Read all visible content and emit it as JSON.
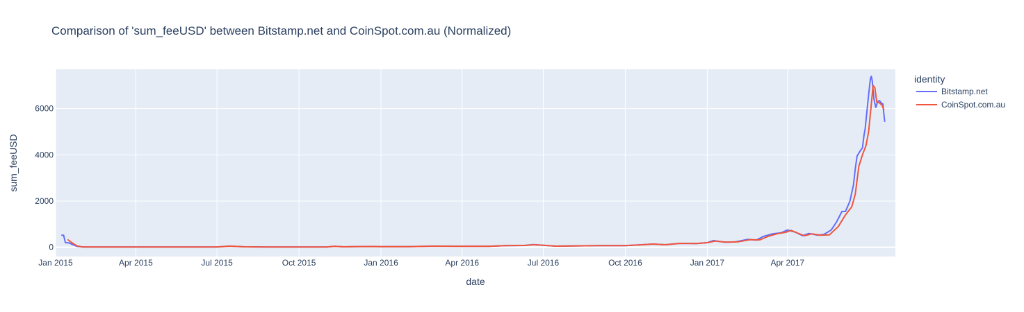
{
  "chart_data": {
    "type": "line",
    "title": "Comparison of 'sum_feeUSD' between Bitstamp.net and CoinSpot.com.au (Normalized)",
    "xlabel": "date",
    "ylabel": "sum_feeUSD",
    "xlim": [
      "2015-01-01",
      "2017-07-31"
    ],
    "ylim": [
      -400,
      7700
    ],
    "x_ticks": [
      {
        "date": "2015-01-01",
        "label": "Jan 2015"
      },
      {
        "date": "2015-04-01",
        "label": "Apr 2015"
      },
      {
        "date": "2015-07-01",
        "label": "Jul 2015"
      },
      {
        "date": "2015-10-01",
        "label": "Oct 2015"
      },
      {
        "date": "2016-01-01",
        "label": "Jan 2016"
      },
      {
        "date": "2016-04-01",
        "label": "Apr 2016"
      },
      {
        "date": "2016-07-01",
        "label": "Jul 2016"
      },
      {
        "date": "2016-10-01",
        "label": "Oct 2016"
      },
      {
        "date": "2017-01-01",
        "label": "Jan 2017"
      },
      {
        "date": "2017-04-01",
        "label": "Apr 2017"
      }
    ],
    "y_ticks": [
      {
        "value": 0,
        "label": "0"
      },
      {
        "value": 2000,
        "label": "2000"
      },
      {
        "value": 4000,
        "label": "4000"
      },
      {
        "value": 6000,
        "label": "6000"
      }
    ],
    "grid": true,
    "legend": {
      "title": "identity",
      "position": "right"
    },
    "series": [
      {
        "name": "Bitstamp.net",
        "color": "#636efa",
        "points": [
          [
            "2015-01-08",
            520
          ],
          [
            "2015-01-10",
            520
          ],
          [
            "2015-01-12",
            200
          ],
          [
            "2015-01-16",
            190
          ],
          [
            "2015-01-20",
            120
          ],
          [
            "2015-01-25",
            40
          ],
          [
            "2015-02-01",
            10
          ],
          [
            "2015-03-01",
            10
          ],
          [
            "2015-04-01",
            10
          ],
          [
            "2015-05-01",
            10
          ],
          [
            "2015-06-01",
            10
          ],
          [
            "2015-07-01",
            15
          ],
          [
            "2015-07-15",
            50
          ],
          [
            "2015-08-01",
            20
          ],
          [
            "2015-09-01",
            10
          ],
          [
            "2015-10-01",
            10
          ],
          [
            "2015-11-01",
            15
          ],
          [
            "2015-11-10",
            45
          ],
          [
            "2015-11-20",
            20
          ],
          [
            "2015-12-01",
            25
          ],
          [
            "2015-12-20",
            35
          ],
          [
            "2016-01-01",
            30
          ],
          [
            "2016-02-01",
            30
          ],
          [
            "2016-03-01",
            50
          ],
          [
            "2016-04-01",
            40
          ],
          [
            "2016-05-01",
            40
          ],
          [
            "2016-05-20",
            70
          ],
          [
            "2016-06-10",
            80
          ],
          [
            "2016-06-20",
            120
          ],
          [
            "2016-07-01",
            90
          ],
          [
            "2016-07-15",
            50
          ],
          [
            "2016-08-01",
            60
          ],
          [
            "2016-09-01",
            70
          ],
          [
            "2016-10-01",
            70
          ],
          [
            "2016-10-20",
            110
          ],
          [
            "2016-11-01",
            140
          ],
          [
            "2016-11-15",
            110
          ],
          [
            "2016-12-01",
            170
          ],
          [
            "2016-12-20",
            160
          ],
          [
            "2017-01-01",
            200
          ],
          [
            "2017-01-08",
            290
          ],
          [
            "2017-01-20",
            220
          ],
          [
            "2017-02-01",
            230
          ],
          [
            "2017-02-15",
            340
          ],
          [
            "2017-02-25",
            310
          ],
          [
            "2017-03-05",
            470
          ],
          [
            "2017-03-15",
            580
          ],
          [
            "2017-03-25",
            630
          ],
          [
            "2017-04-01",
            750
          ],
          [
            "2017-04-10",
            650
          ],
          [
            "2017-04-18",
            500
          ],
          [
            "2017-04-25",
            600
          ],
          [
            "2017-05-05",
            520
          ],
          [
            "2017-05-12",
            560
          ],
          [
            "2017-05-20",
            750
          ],
          [
            "2017-05-26",
            1100
          ],
          [
            "2017-06-01",
            1550
          ],
          [
            "2017-06-05",
            1550
          ],
          [
            "2017-06-10",
            2000
          ],
          [
            "2017-06-14",
            2700
          ],
          [
            "2017-06-16",
            3400
          ],
          [
            "2017-06-18",
            3950
          ],
          [
            "2017-06-22",
            4200
          ],
          [
            "2017-06-24",
            4300
          ],
          [
            "2017-06-26",
            4900
          ],
          [
            "2017-06-27",
            5100
          ],
          [
            "2017-07-01",
            6600
          ],
          [
            "2017-07-03",
            7300
          ],
          [
            "2017-07-04",
            7400
          ],
          [
            "2017-07-05",
            7200
          ],
          [
            "2017-07-07",
            6400
          ],
          [
            "2017-07-09",
            6050
          ],
          [
            "2017-07-11",
            6300
          ],
          [
            "2017-07-13",
            6350
          ],
          [
            "2017-07-15",
            6250
          ],
          [
            "2017-07-17",
            6200
          ],
          [
            "2017-07-18",
            5800
          ],
          [
            "2017-07-19",
            5450
          ]
        ]
      },
      {
        "name": "CoinSpot.com.au",
        "color": "#ef553b",
        "points": [
          [
            "2015-01-15",
            320
          ],
          [
            "2015-01-20",
            180
          ],
          [
            "2015-01-25",
            60
          ],
          [
            "2015-02-01",
            10
          ],
          [
            "2015-03-01",
            10
          ],
          [
            "2015-04-01",
            10
          ],
          [
            "2015-05-01",
            10
          ],
          [
            "2015-06-01",
            10
          ],
          [
            "2015-07-01",
            15
          ],
          [
            "2015-07-15",
            50
          ],
          [
            "2015-08-01",
            20
          ],
          [
            "2015-09-01",
            10
          ],
          [
            "2015-10-01",
            10
          ],
          [
            "2015-11-01",
            15
          ],
          [
            "2015-11-10",
            45
          ],
          [
            "2015-11-20",
            20
          ],
          [
            "2015-12-01",
            25
          ],
          [
            "2015-12-20",
            35
          ],
          [
            "2016-01-01",
            30
          ],
          [
            "2016-02-01",
            30
          ],
          [
            "2016-03-01",
            50
          ],
          [
            "2016-04-01",
            40
          ],
          [
            "2016-05-01",
            40
          ],
          [
            "2016-05-20",
            70
          ],
          [
            "2016-06-10",
            80
          ],
          [
            "2016-06-20",
            110
          ],
          [
            "2016-07-01",
            90
          ],
          [
            "2016-07-15",
            50
          ],
          [
            "2016-08-01",
            60
          ],
          [
            "2016-09-01",
            70
          ],
          [
            "2016-10-01",
            70
          ],
          [
            "2016-10-20",
            110
          ],
          [
            "2016-11-01",
            140
          ],
          [
            "2016-11-15",
            110
          ],
          [
            "2016-12-01",
            170
          ],
          [
            "2016-12-20",
            160
          ],
          [
            "2017-01-01",
            200
          ],
          [
            "2017-01-10",
            270
          ],
          [
            "2017-01-22",
            220
          ],
          [
            "2017-02-05",
            240
          ],
          [
            "2017-02-18",
            330
          ],
          [
            "2017-03-01",
            320
          ],
          [
            "2017-03-10",
            470
          ],
          [
            "2017-03-20",
            580
          ],
          [
            "2017-03-30",
            650
          ],
          [
            "2017-04-05",
            730
          ],
          [
            "2017-04-12",
            620
          ],
          [
            "2017-04-20",
            500
          ],
          [
            "2017-04-28",
            580
          ],
          [
            "2017-05-08",
            520
          ],
          [
            "2017-05-18",
            540
          ],
          [
            "2017-05-28",
            900
          ],
          [
            "2017-06-05",
            1400
          ],
          [
            "2017-06-12",
            1750
          ],
          [
            "2017-06-16",
            2300
          ],
          [
            "2017-06-20",
            3500
          ],
          [
            "2017-06-24",
            4000
          ],
          [
            "2017-06-28",
            4400
          ],
          [
            "2017-07-01",
            5000
          ],
          [
            "2017-07-04",
            6200
          ],
          [
            "2017-07-06",
            7000
          ],
          [
            "2017-07-08",
            6900
          ],
          [
            "2017-07-10",
            6300
          ],
          [
            "2017-07-13",
            6250
          ],
          [
            "2017-07-16",
            6150
          ],
          [
            "2017-07-18",
            5950
          ]
        ]
      }
    ]
  }
}
